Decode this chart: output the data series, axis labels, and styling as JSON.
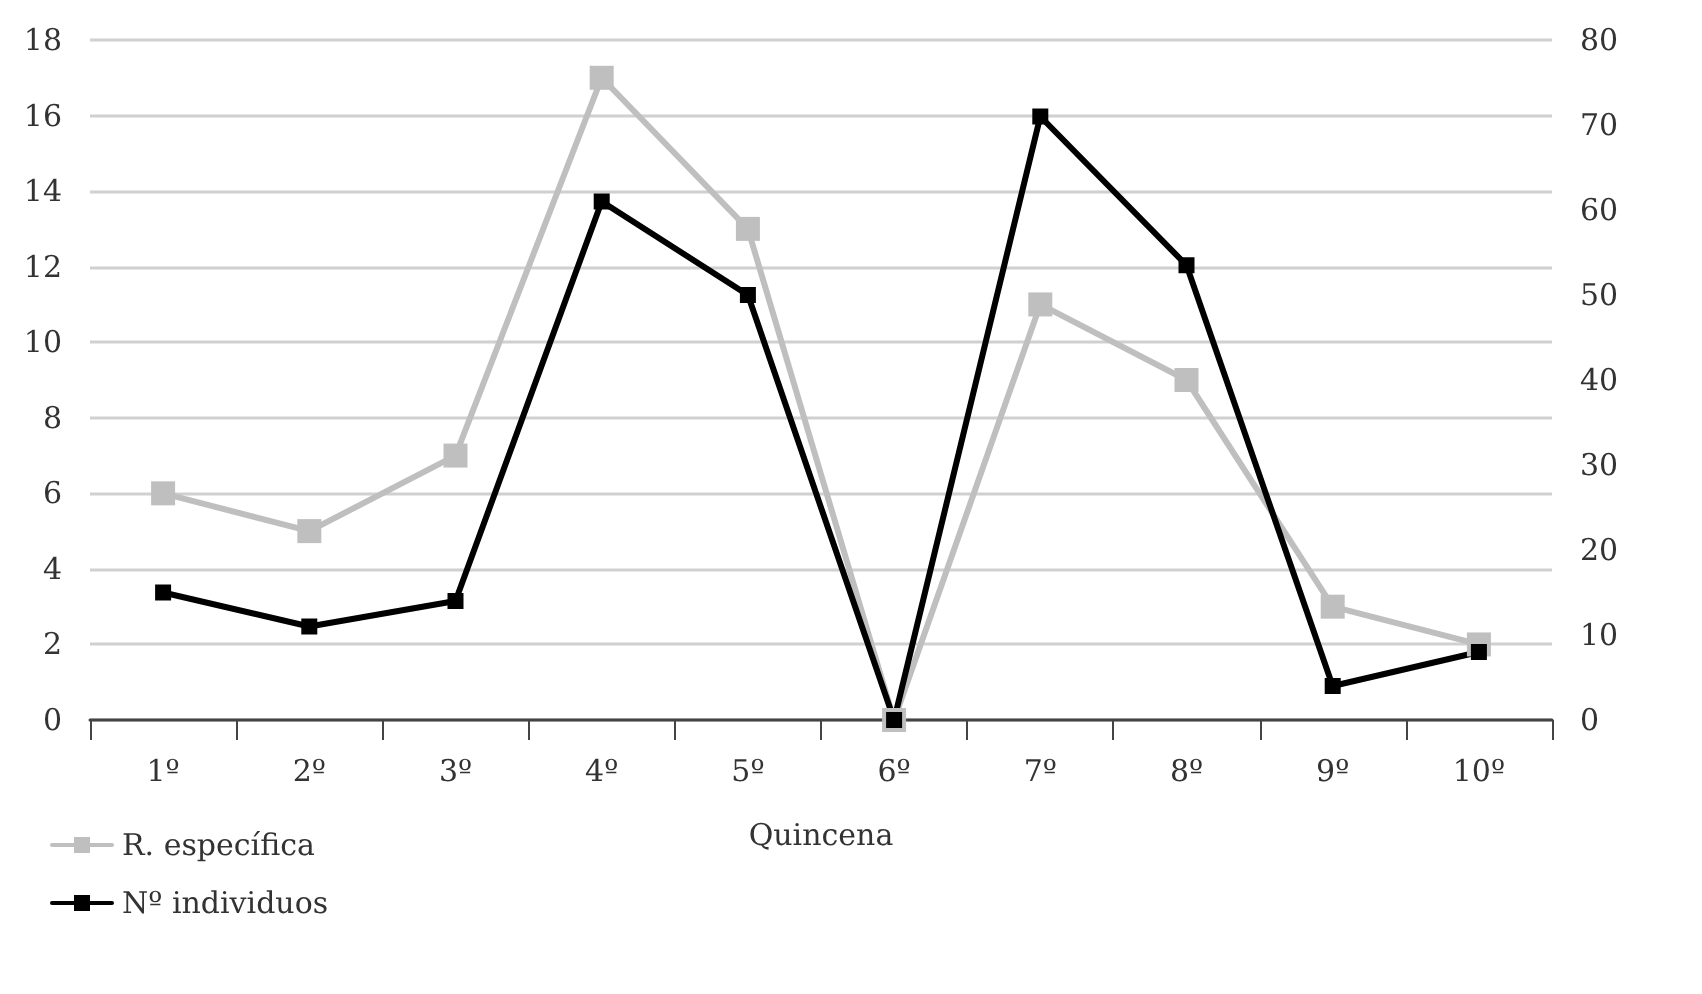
{
  "chart_data": {
    "type": "line",
    "xlabel": "Quincena",
    "categories": [
      "1º",
      "2º",
      "3º",
      "4º",
      "5º",
      "6º",
      "7º",
      "8º",
      "9º",
      "10º"
    ],
    "series": [
      {
        "name": "R. específica",
        "color": "#bfbfbf",
        "values": [
          6,
          5,
          7,
          17,
          13,
          0,
          11,
          9,
          3,
          2
        ]
      },
      {
        "name": "Nº individuos",
        "color": "#000000",
        "axis": "y2",
        "values": [
          15,
          11,
          14,
          61,
          50,
          0,
          71,
          53.5,
          4,
          8
        ]
      }
    ],
    "ylim": [
      0,
      18
    ],
    "yticks": [
      0,
      2,
      4,
      6,
      8,
      10,
      12,
      14,
      16,
      18
    ],
    "y2lim": [
      0,
      80
    ],
    "y2ticks": [
      0,
      10,
      20,
      30,
      40,
      50,
      60,
      70,
      80
    ],
    "grid": "y",
    "legend": "bottom left",
    "marker": "square",
    "line_style": "solid"
  }
}
